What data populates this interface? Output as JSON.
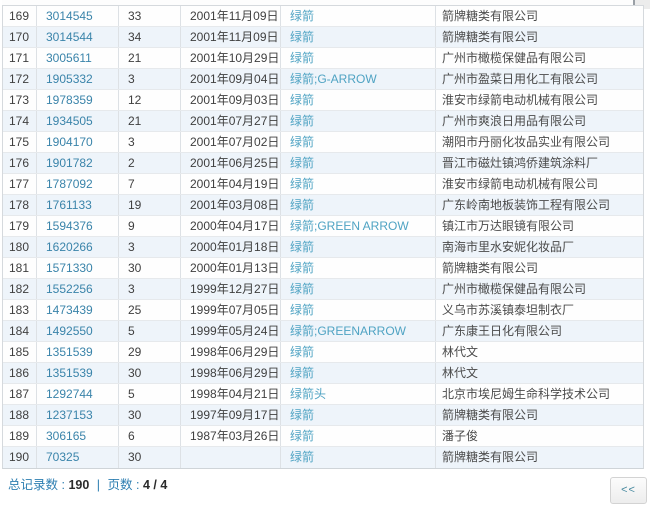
{
  "table": {
    "rows": [
      {
        "no": "169",
        "reg": "3014545",
        "cls": "33",
        "date": "2001年11月09日",
        "mark": "绿箭",
        "applicant": "箭牌糖类有限公司"
      },
      {
        "no": "170",
        "reg": "3014544",
        "cls": "34",
        "date": "2001年11月09日",
        "mark": "绿箭",
        "applicant": "箭牌糖类有限公司"
      },
      {
        "no": "171",
        "reg": "3005611",
        "cls": "21",
        "date": "2001年10月29日",
        "mark": "绿箭",
        "applicant": "广州市橄榄保健品有限公司"
      },
      {
        "no": "172",
        "reg": "1905332",
        "cls": "3",
        "date": "2001年09月04日",
        "mark": "绿箭;G-ARROW",
        "applicant": "广州市盈菜日用化工有限公司"
      },
      {
        "no": "173",
        "reg": "1978359",
        "cls": "12",
        "date": "2001年09月03日",
        "mark": "绿箭",
        "applicant": "淮安市绿箭电动机械有限公司"
      },
      {
        "no": "174",
        "reg": "1934505",
        "cls": "21",
        "date": "2001年07月27日",
        "mark": "绿箭",
        "applicant": "广州市爽浪日用品有限公司"
      },
      {
        "no": "175",
        "reg": "1904170",
        "cls": "3",
        "date": "2001年07月02日",
        "mark": "绿箭",
        "applicant": "潮阳市丹丽化妆品实业有限公司"
      },
      {
        "no": "176",
        "reg": "1901782",
        "cls": "2",
        "date": "2001年06月25日",
        "mark": "绿箭",
        "applicant": "晋江市磁灶镇鸿侨建筑涂料厂"
      },
      {
        "no": "177",
        "reg": "1787092",
        "cls": "7",
        "date": "2001年04月19日",
        "mark": "绿箭",
        "applicant": "淮安市绿箭电动机械有限公司"
      },
      {
        "no": "178",
        "reg": "1761133",
        "cls": "19",
        "date": "2001年03月08日",
        "mark": "绿箭",
        "applicant": "广东岭南地板装饰工程有限公司"
      },
      {
        "no": "179",
        "reg": "1594376",
        "cls": "9",
        "date": "2000年04月17日",
        "mark": "绿箭;GREEN ARROW",
        "applicant": "镇江市万达眼镜有限公司"
      },
      {
        "no": "180",
        "reg": "1620266",
        "cls": "3",
        "date": "2000年01月18日",
        "mark": "绿箭",
        "applicant": "南海市里水安妮化妆品厂"
      },
      {
        "no": "181",
        "reg": "1571330",
        "cls": "30",
        "date": "2000年01月13日",
        "mark": "绿箭",
        "applicant": "箭牌糖类有限公司"
      },
      {
        "no": "182",
        "reg": "1552256",
        "cls": "3",
        "date": "1999年12月27日",
        "mark": "绿箭",
        "applicant": "广州市橄榄保健品有限公司"
      },
      {
        "no": "183",
        "reg": "1473439",
        "cls": "25",
        "date": "1999年07月05日",
        "mark": "绿箭",
        "applicant": "义乌市苏溪镇泰坦制衣厂"
      },
      {
        "no": "184",
        "reg": "1492550",
        "cls": "5",
        "date": "1999年05月24日",
        "mark": "绿箭;GREENARROW",
        "applicant": "广东康王日化有限公司"
      },
      {
        "no": "185",
        "reg": "1351539",
        "cls": "29",
        "date": "1998年06月29日",
        "mark": "绿箭",
        "applicant": "林代文"
      },
      {
        "no": "186",
        "reg": "1351539",
        "cls": "30",
        "date": "1998年06月29日",
        "mark": "绿箭",
        "applicant": "林代文"
      },
      {
        "no": "187",
        "reg": "1292744",
        "cls": "5",
        "date": "1998年04月21日",
        "mark": "绿箭头",
        "applicant": "北京市埃尼姆生命科学技术公司"
      },
      {
        "no": "188",
        "reg": "1237153",
        "cls": "30",
        "date": "1997年09月17日",
        "mark": "绿箭",
        "applicant": "箭牌糖类有限公司"
      },
      {
        "no": "189",
        "reg": "306165",
        "cls": "6",
        "date": "1987年03月26日",
        "mark": "绿箭",
        "applicant": "潘子俊"
      },
      {
        "no": "190",
        "reg": "70325",
        "cls": "30",
        "date": "",
        "mark": "绿箭",
        "applicant": "箭牌糖类有限公司"
      }
    ]
  },
  "footer": {
    "total_label": "总记录数 :",
    "total_value": "190",
    "separator": "|",
    "pages_label": "页数 :",
    "pages_value": "4 / 4",
    "first_page_button": "<<"
  },
  "colors": {
    "link_blue": "#3a84aa",
    "mark_teal": "#4fa3c3",
    "footer_label_blue": "#2e7fb2",
    "row_alt_bg": "#eef4fa",
    "text_dark": "#3f3f3f"
  }
}
